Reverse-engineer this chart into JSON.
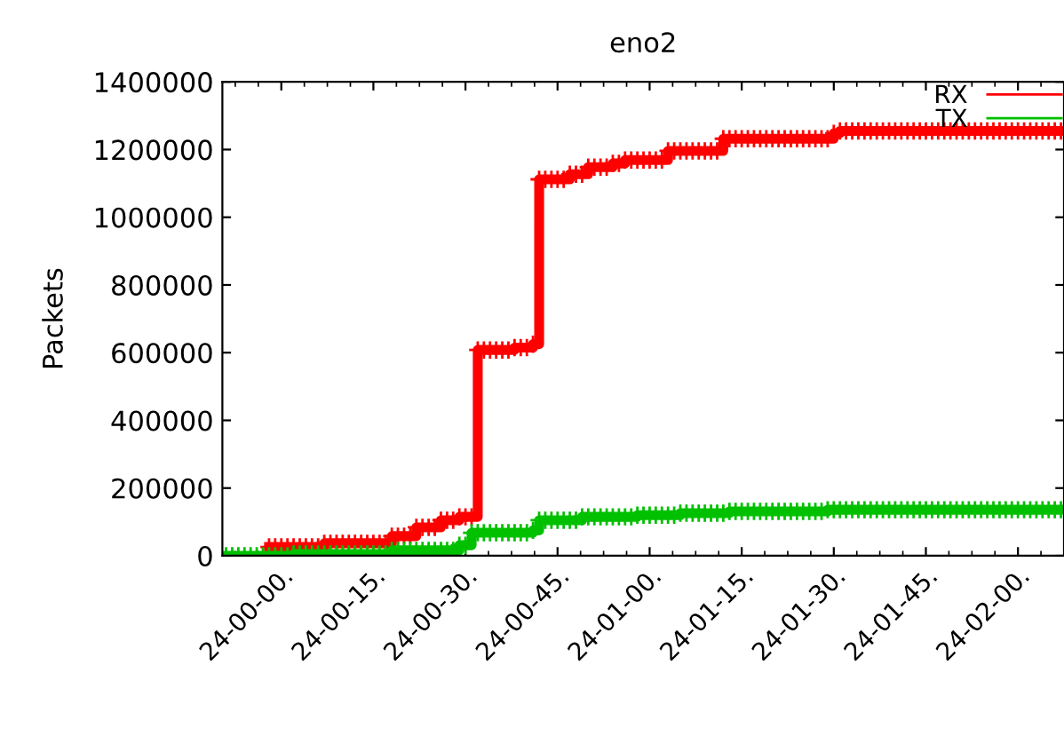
{
  "chart_data": {
    "type": "step",
    "title": "eno2",
    "ylabel": "Packets",
    "categories": [
      null,
      null,
      null,
      null,
      null,
      null,
      null,
      null,
      null,
      "24-00-00.",
      null,
      null,
      null,
      null,
      null,
      null,
      null,
      null,
      null,
      null,
      null,
      null,
      null,
      null,
      "24-00-15.",
      null,
      null,
      null,
      null,
      null,
      null,
      null,
      null,
      null,
      null,
      null,
      null,
      null,
      null,
      "24-00-30.",
      null,
      null,
      null,
      null,
      null,
      null,
      null,
      null,
      null,
      null,
      null,
      null,
      null,
      null,
      "24-00-45.",
      null,
      null,
      null,
      null,
      null,
      null,
      null,
      null,
      null,
      null,
      null,
      null,
      null,
      null,
      "24-01-00.",
      null,
      null,
      null,
      null,
      null,
      null,
      null,
      null,
      null,
      null,
      null,
      null,
      null,
      null,
      "24-01-15.",
      null,
      null,
      null,
      null,
      null,
      null,
      null,
      null,
      null,
      null,
      null,
      null,
      null,
      null,
      "24-01-30.",
      null,
      null,
      null,
      null,
      null,
      null,
      null,
      null,
      null,
      null,
      null,
      null,
      null,
      null,
      "24-01-45.",
      null,
      null,
      null,
      null,
      null,
      null,
      null,
      null,
      null,
      null,
      null,
      null,
      null,
      null,
      "24-02-00.",
      null,
      null,
      null,
      null,
      null,
      null,
      null
    ],
    "ylim": [
      0,
      1400000
    ],
    "yticks": [
      0,
      200000,
      400000,
      600000,
      800000,
      1000000,
      1200000,
      1400000
    ],
    "legend": "top right",
    "grid": false,
    "line_style": "solid",
    "series": [
      {
        "name": "RX",
        "color": "#ff0000",
        "marker": "cross",
        "values": [
          null,
          null,
          null,
          null,
          null,
          null,
          null,
          26000,
          26000,
          26000,
          26000,
          26000,
          26000,
          26000,
          26000,
          26000,
          37000,
          37000,
          37000,
          37000,
          37000,
          37000,
          37000,
          37000,
          37000,
          37000,
          37000,
          58000,
          58000,
          58000,
          58000,
          84000,
          84000,
          84000,
          84000,
          105000,
          105000,
          105000,
          115000,
          115000,
          115000,
          608000,
          608000,
          608000,
          608000,
          608000,
          608000,
          615000,
          615000,
          615000,
          625000,
          1112000,
          1112000,
          1112000,
          1112000,
          1112000,
          1127000,
          1127000,
          1127000,
          1148000,
          1148000,
          1148000,
          1148000,
          1159000,
          1159000,
          1169000,
          1169000,
          1169000,
          1169000,
          1169000,
          1169000,
          1169000,
          1196000,
          1196000,
          1196000,
          1196000,
          1196000,
          1196000,
          1196000,
          1196000,
          1196000,
          1232000,
          1232000,
          1232000,
          1232000,
          1232000,
          1232000,
          1232000,
          1232000,
          1232000,
          1232000,
          1232000,
          1232000,
          1232000,
          1232000,
          1232000,
          1232000,
          1232000,
          1232000,
          1248000,
          1255000,
          1255000,
          1255000,
          1255000,
          1255000,
          1255000,
          1255000,
          1255000,
          1255000,
          1255000,
          1255000,
          1255000,
          1255000,
          1255000,
          1255000,
          1255000,
          1255000,
          1255000,
          1255000,
          1255000,
          1255000,
          1255000,
          1255000,
          1255000,
          1255000,
          1255000,
          1255000,
          1255000,
          1255000,
          1255000,
          1255000,
          1255000,
          1255000,
          1255000,
          1255000,
          1255000,
          1255000
        ]
      },
      {
        "name": "TX",
        "color": "#00c000",
        "marker": "cross",
        "values": [
          0,
          0,
          0,
          0,
          0,
          0,
          0,
          0,
          0,
          0,
          0,
          5000,
          5000,
          5000,
          5000,
          5000,
          5000,
          5000,
          5000,
          5000,
          5000,
          5000,
          5000,
          5000,
          5000,
          5000,
          5000,
          16000,
          16000,
          16000,
          16000,
          16000,
          16000,
          16000,
          16000,
          16000,
          16000,
          16000,
          31000,
          31000,
          68000,
          68000,
          68000,
          68000,
          68000,
          68000,
          68000,
          68000,
          68000,
          68000,
          75000,
          105000,
          105000,
          105000,
          105000,
          105000,
          105000,
          105000,
          115000,
          115000,
          115000,
          115000,
          115000,
          115000,
          115000,
          115000,
          115000,
          120000,
          120000,
          120000,
          120000,
          120000,
          120000,
          120000,
          126000,
          126000,
          126000,
          126000,
          126000,
          126000,
          126000,
          126000,
          131000,
          131000,
          131000,
          131000,
          131000,
          131000,
          131000,
          131000,
          131000,
          131000,
          131000,
          131000,
          131000,
          131000,
          131000,
          131000,
          136000,
          136000,
          136000,
          136000,
          136000,
          136000,
          136000,
          136000,
          136000,
          136000,
          136000,
          136000,
          136000,
          136000,
          136000,
          136000,
          136000,
          136000,
          136000,
          136000,
          136000,
          136000,
          136000,
          136000,
          136000,
          136000,
          136000,
          136000,
          136000,
          136000,
          136000,
          136000,
          136000,
          136000,
          136000,
          136000,
          136000,
          136000,
          136000
        ]
      }
    ]
  }
}
